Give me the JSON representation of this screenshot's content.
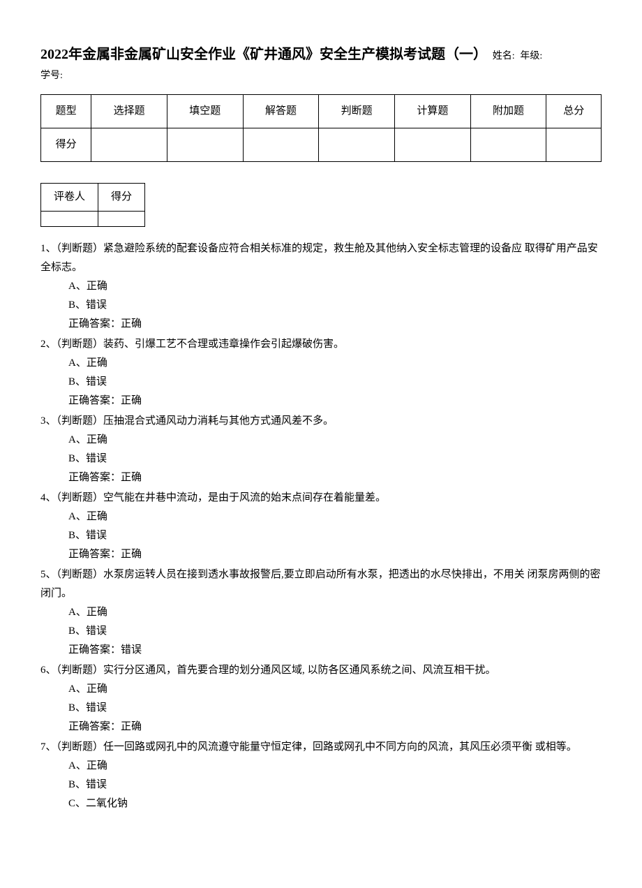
{
  "header": {
    "title": "2022年金属非金属矿山安全作业《矿井通风》安全生产模拟考试题（一）",
    "name_label": "姓名:",
    "grade_label": "年级:",
    "id_label": "学号:"
  },
  "score_table": {
    "headers": [
      "题型",
      "选择题",
      "填空题",
      "解答题",
      "判断题",
      "计算题",
      "附加题",
      "总分"
    ],
    "score_row_label": "得分"
  },
  "grader_table": {
    "grader_label": "评卷人",
    "score_label": "得分"
  },
  "questions": [
    {
      "num": "1、",
      "type": "（判断题）",
      "stem": "紧急避险系统的配套设备应符合相关标准的规定，救生舱及其他纳入安全标志管理的设备应 取得矿用产品安全标志。",
      "options": [
        "A、正确",
        "B、错误"
      ],
      "answer": "正确答案：正确"
    },
    {
      "num": "2、",
      "type": "（判断题）",
      "stem": "装药、引爆工艺不合理或违章操作会引起爆破伤害。",
      "options": [
        "A、正确",
        "B、错误"
      ],
      "answer": "正确答案：正确"
    },
    {
      "num": "3、",
      "type": "（判断题）",
      "stem": "压抽混合式通风动力消耗与其他方式通风差不多。",
      "options": [
        "A、正确",
        "B、错误"
      ],
      "answer": "正确答案：正确"
    },
    {
      "num": "4、",
      "type": "（判断题）",
      "stem": "空气能在井巷中流动，是由于风流的始末点间存在着能量差。",
      "options": [
        "A、正确",
        "B、错误"
      ],
      "answer": "正确答案：正确"
    },
    {
      "num": "5、",
      "type": "（判断题）",
      "stem": "水泵房运转人员在接到透水事故报警后,要立即启动所有水泵，把透出的水尽快排出，不用关 闭泵房两侧的密闭门。",
      "options": [
        "A、正确",
        "B、错误"
      ],
      "answer": "正确答案：错误"
    },
    {
      "num": "6、",
      "type": "（判断题）",
      "stem": "实行分区通风，首先要合理的划分通风区域, 以防各区通风系统之间、风流互相干扰。",
      "options": [
        "A、正确",
        "B、错误"
      ],
      "answer": "正确答案：正确"
    },
    {
      "num": "7、",
      "type": "（判断题）",
      "stem": "任一回路或网孔中的风流遵守能量守恒定律，回路或网孔中不同方向的风流，其风压必须平衡 或相等。",
      "options": [
        "A、正确",
        "B、错误",
        "C、二氧化钠"
      ],
      "answer": ""
    }
  ]
}
